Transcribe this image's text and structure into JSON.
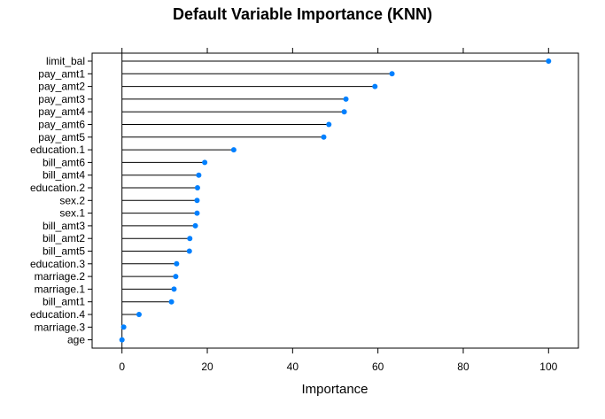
{
  "chart_data": {
    "type": "dotplot",
    "title": "Default Variable Importance (KNN)",
    "xlabel": "Importance",
    "ylabel": "",
    "xlim": [
      -7,
      107
    ],
    "xticks": [
      0,
      20,
      40,
      60,
      80,
      100
    ],
    "grid": false,
    "legend": "none",
    "categories": [
      "limit_bal",
      "pay_amt1",
      "pay_amt2",
      "pay_amt3",
      "pay_amt4",
      "pay_amt6",
      "pay_amt5",
      "education.1",
      "bill_amt6",
      "bill_amt4",
      "education.2",
      "sex.2",
      "sex.1",
      "bill_amt3",
      "bill_amt2",
      "bill_amt5",
      "education.3",
      "marriage.2",
      "marriage.1",
      "bill_amt1",
      "education.4",
      "marriage.3",
      "age"
    ],
    "values": [
      100,
      63.3,
      59.3,
      52.5,
      52.1,
      48.5,
      47.3,
      26.2,
      19.4,
      18.0,
      17.7,
      17.6,
      17.6,
      17.2,
      15.9,
      15.8,
      12.8,
      12.6,
      12.2,
      11.6,
      4.0,
      0.4,
      0
    ],
    "point_color": "#0080ff",
    "line_color": "#000000"
  }
}
